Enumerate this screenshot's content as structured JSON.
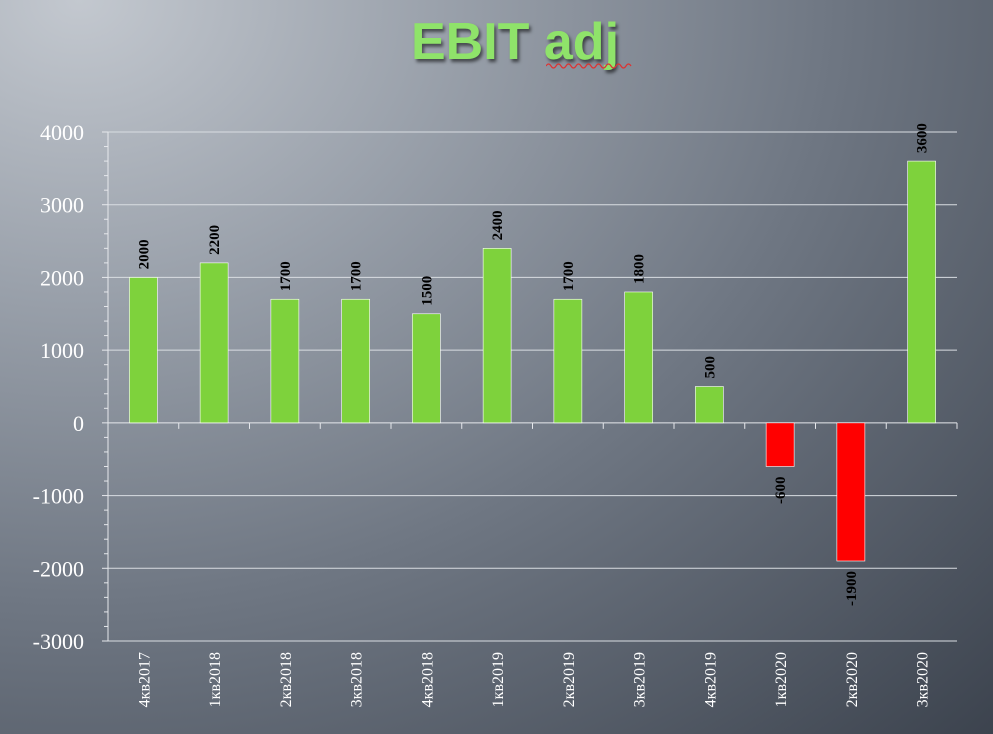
{
  "chart_data": {
    "type": "bar",
    "title": "EBIT adj",
    "categories": [
      "4кв2017",
      "1кв2018",
      "2кв2018",
      "3кв2018",
      "4кв2018",
      "1кв2019",
      "2кв2019",
      "3кв2019",
      "4кв2019",
      "1кв2020",
      "2кв2020",
      "3кв2020"
    ],
    "values": [
      2000,
      2200,
      1700,
      1700,
      1500,
      2400,
      1700,
      1800,
      500,
      -600,
      -1900,
      3600
    ],
    "data_labels": [
      "2000",
      "2200",
      "1700",
      "1700",
      "1500",
      "2400",
      "1700",
      "1800",
      "500",
      "-600",
      "-1900",
      "3600"
    ],
    "ylim": [
      -3000,
      4000
    ],
    "yticks": [
      "4000",
      "3000",
      "2000",
      "1000",
      "0",
      "-1000",
      "-2000",
      "-3000"
    ],
    "ytick_values": [
      4000,
      3000,
      2000,
      1000,
      0,
      -1000,
      -2000,
      -3000
    ],
    "xlabel": "",
    "ylabel": "",
    "grid": true,
    "legend": "none",
    "colors": {
      "positive": "#7ed23c",
      "negative": "#ff0000",
      "grid": "#d9dde2"
    }
  }
}
